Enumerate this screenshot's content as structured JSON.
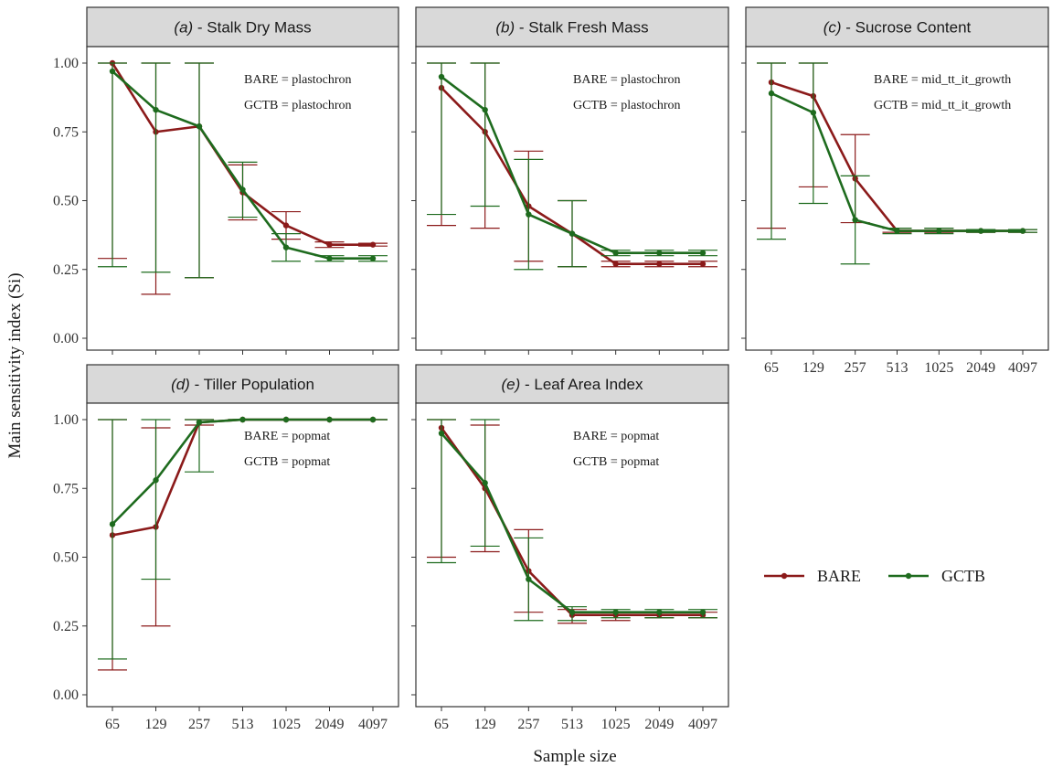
{
  "chart_data": {
    "type": "line",
    "xlabel": "Sample size",
    "ylabel": "Main sensitivity index (Si)",
    "x_categories": [
      "65",
      "129",
      "257",
      "513",
      "1025",
      "2049",
      "4097"
    ],
    "y_ticks": [
      "0.00",
      "0.25",
      "0.50",
      "0.75",
      "1.00"
    ],
    "ylim": [
      0,
      1
    ],
    "legend": {
      "placement": "right",
      "entries": [
        {
          "name": "BARE",
          "color": "#8b1a1a"
        },
        {
          "name": "GCTB",
          "color": "#1e6b1e"
        }
      ]
    },
    "panels": [
      {
        "id": "a",
        "title_prefix": "(a)",
        "title": " - Stalk Dry Mass",
        "annotations": [
          "BARE =  plastochron",
          "GCTB =  plastochron"
        ],
        "series": [
          {
            "name": "BARE",
            "values": [
              1.0,
              0.75,
              0.77,
              0.53,
              0.41,
              0.34,
              0.34
            ],
            "lower": [
              0.29,
              0.16,
              0.22,
              0.43,
              0.36,
              0.33,
              0.335
            ],
            "upper": [
              1.0,
              1.0,
              1.0,
              0.63,
              0.46,
              0.35,
              0.345
            ]
          },
          {
            "name": "GCTB",
            "values": [
              0.97,
              0.83,
              0.77,
              0.54,
              0.33,
              0.29,
              0.29
            ],
            "lower": [
              0.26,
              0.24,
              0.22,
              0.44,
              0.28,
              0.28,
              0.28
            ],
            "upper": [
              1.0,
              1.0,
              1.0,
              0.64,
              0.38,
              0.3,
              0.3
            ]
          }
        ]
      },
      {
        "id": "b",
        "title_prefix": "(b)",
        "title": " - Stalk Fresh Mass",
        "annotations": [
          "BARE =  plastochron",
          "GCTB =  plastochron"
        ],
        "series": [
          {
            "name": "BARE",
            "values": [
              0.91,
              0.75,
              0.48,
              0.38,
              0.27,
              0.27,
              0.27
            ],
            "lower": [
              0.41,
              0.4,
              0.28,
              0.26,
              0.26,
              0.26,
              0.26
            ],
            "upper": [
              1.0,
              1.0,
              0.68,
              0.5,
              0.28,
              0.28,
              0.28
            ]
          },
          {
            "name": "GCTB",
            "values": [
              0.95,
              0.83,
              0.45,
              0.38,
              0.31,
              0.31,
              0.31
            ],
            "lower": [
              0.45,
              0.48,
              0.25,
              0.26,
              0.3,
              0.3,
              0.3
            ],
            "upper": [
              1.0,
              1.0,
              0.65,
              0.5,
              0.32,
              0.32,
              0.32
            ]
          }
        ]
      },
      {
        "id": "c",
        "title_prefix": "(c)",
        "title": " - Sucrose Content",
        "annotations": [
          "BARE =  mid_tt_it_growth",
          "GCTB =  mid_tt_it_growth"
        ],
        "series": [
          {
            "name": "BARE",
            "values": [
              0.93,
              0.88,
              0.58,
              0.39,
              0.39,
              0.39,
              0.39
            ],
            "lower": [
              0.4,
              0.55,
              0.42,
              0.385,
              0.385,
              0.385,
              0.385
            ],
            "upper": [
              1.0,
              1.0,
              0.74,
              0.4,
              0.4,
              0.395,
              0.395
            ]
          },
          {
            "name": "GCTB",
            "values": [
              0.89,
              0.82,
              0.43,
              0.39,
              0.39,
              0.39,
              0.39
            ],
            "lower": [
              0.36,
              0.49,
              0.27,
              0.38,
              0.38,
              0.385,
              0.385
            ],
            "upper": [
              1.0,
              1.0,
              0.59,
              0.4,
              0.4,
              0.395,
              0.395
            ]
          }
        ]
      },
      {
        "id": "d",
        "title_prefix": "(d)",
        "title": " - Tiller Population",
        "annotations": [
          "BARE =  popmat",
          "GCTB =  popmat"
        ],
        "series": [
          {
            "name": "BARE",
            "values": [
              0.58,
              0.61,
              0.99,
              1.0,
              1.0,
              1.0,
              1.0
            ],
            "lower": [
              0.09,
              0.25,
              0.98,
              1.0,
              1.0,
              1.0,
              1.0
            ],
            "upper": [
              1.0,
              0.97,
              1.0,
              1.0,
              1.0,
              1.0,
              1.0
            ]
          },
          {
            "name": "GCTB",
            "values": [
              0.62,
              0.78,
              0.99,
              1.0,
              1.0,
              1.0,
              1.0
            ],
            "lower": [
              0.13,
              0.42,
              0.81,
              1.0,
              1.0,
              1.0,
              1.0
            ],
            "upper": [
              1.0,
              1.0,
              1.0,
              1.0,
              1.0,
              1.0,
              1.0
            ]
          }
        ]
      },
      {
        "id": "e",
        "title_prefix": "(e)",
        "title": " - Leaf Area Index",
        "annotations": [
          "BARE =  popmat",
          "GCTB =  popmat"
        ],
        "series": [
          {
            "name": "BARE",
            "values": [
              0.97,
              0.75,
              0.45,
              0.29,
              0.29,
              0.29,
              0.29
            ],
            "lower": [
              0.5,
              0.52,
              0.3,
              0.26,
              0.27,
              0.28,
              0.28
            ],
            "upper": [
              1.0,
              0.98,
              0.6,
              0.31,
              0.3,
              0.3,
              0.3
            ]
          },
          {
            "name": "GCTB",
            "values": [
              0.95,
              0.77,
              0.42,
              0.3,
              0.3,
              0.3,
              0.3
            ],
            "lower": [
              0.48,
              0.54,
              0.27,
              0.27,
              0.28,
              0.28,
              0.28
            ],
            "upper": [
              1.0,
              1.0,
              0.57,
              0.32,
              0.31,
              0.31,
              0.31
            ]
          }
        ]
      }
    ]
  }
}
